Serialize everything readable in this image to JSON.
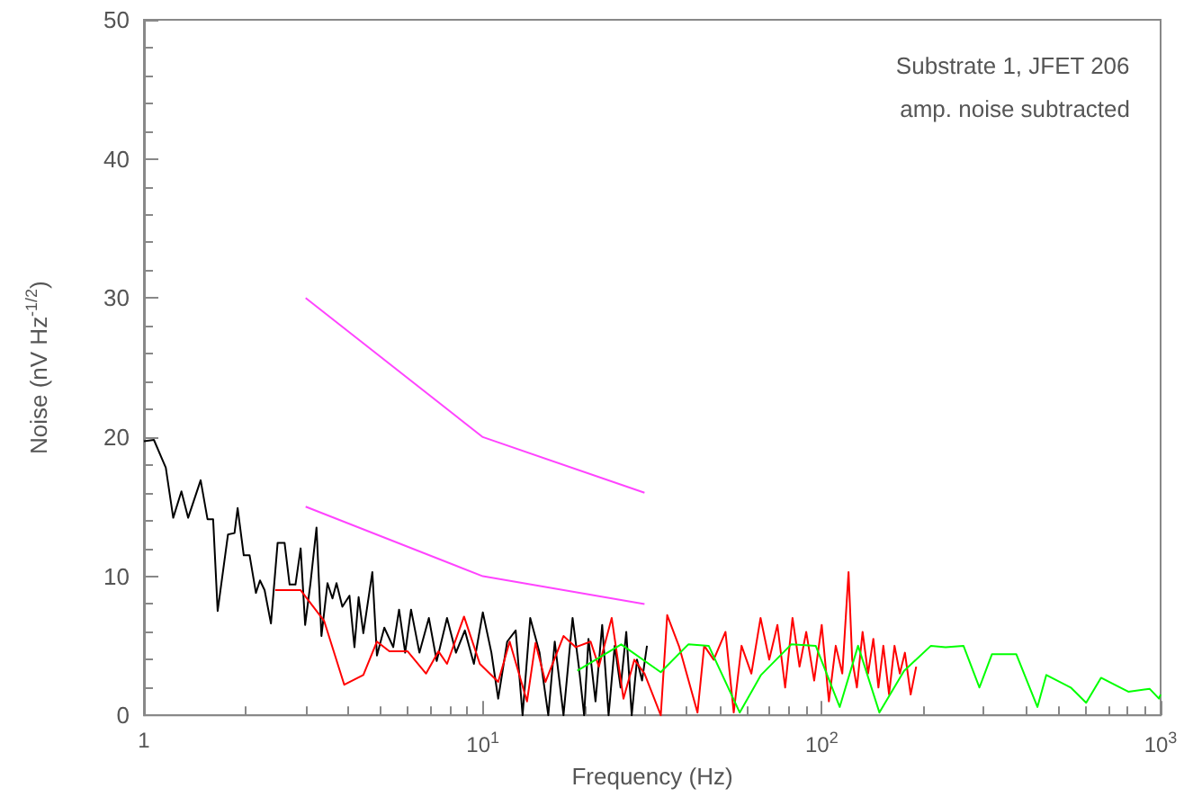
{
  "chart_data": {
    "type": "line",
    "xlabel": "Frequency (Hz)",
    "ylabel": "Noise (nV Hz$^{-1/2}$)",
    "log": "x",
    "xlim": [
      1,
      1000
    ],
    "ylim": [
      0,
      50
    ],
    "xticks": [
      {
        "value": 1,
        "label": "1"
      },
      {
        "value": 10,
        "label": "10$^{1}$"
      },
      {
        "value": 100,
        "label": "10$^{2}$"
      },
      {
        "value": 1000,
        "label": "10$^{3}$"
      }
    ],
    "yticks": [
      0,
      10,
      20,
      30,
      40,
      50
    ],
    "grid": false,
    "marker": "none",
    "annotations": [
      "Substrate 1, JFET 206",
      "amp. noise subtracted"
    ],
    "series": [
      {
        "color": "#000000",
        "x": [
          1,
          1.07,
          1.16,
          1.22,
          1.29,
          1.35,
          1.47,
          1.54,
          1.6,
          1.65,
          1.77,
          1.85,
          1.89,
          1.97,
          2.05,
          2.14,
          2.2,
          2.27,
          2.37,
          2.48,
          2.6,
          2.69,
          2.8,
          2.9,
          2.99,
          3.1,
          3.23,
          3.34,
          3.48,
          3.6,
          3.7,
          3.85,
          4.04,
          4.18,
          4.3,
          4.44,
          4.72,
          4.87,
          5.12,
          5.44,
          5.66,
          5.9,
          6.14,
          6.5,
          6.93,
          7.31,
          7.84,
          8.33,
          8.85,
          9.41,
          10,
          10.6,
          11.1,
          11.8,
          12.5,
          13.1,
          13.8,
          14.7,
          15.6,
          16.3,
          17.3,
          18.4,
          19.2,
          19.9,
          20.5,
          21.5,
          22.5,
          23.5,
          24.5,
          25.5,
          26.5,
          27.5,
          28.5,
          29.5,
          30.5
        ],
        "values": [
          19.7,
          19.8,
          17.8,
          14.2,
          16.1,
          14.2,
          16.9,
          14.1,
          14.1,
          7.5,
          13,
          13.1,
          14.9,
          11.5,
          11.5,
          8.8,
          9.7,
          9,
          6.6,
          12.4,
          12.4,
          9.4,
          9.4,
          12,
          6.5,
          9.5,
          13.5,
          5.7,
          9.5,
          8.4,
          9.5,
          7.8,
          8.6,
          4.9,
          8.5,
          5.9,
          10.3,
          4.3,
          6.3,
          4.9,
          7.6,
          4.5,
          7.6,
          4.5,
          7,
          3.9,
          7,
          4.5,
          6.1,
          3.7,
          7.4,
          4.5,
          1.2,
          5.3,
          6.1,
          0,
          7,
          4.5,
          0,
          5.3,
          0,
          7,
          3.5,
          0,
          5.5,
          1,
          6.5,
          0,
          5,
          2,
          6,
          0,
          4,
          2.5,
          5
        ]
      },
      {
        "color": "#ff0000",
        "x": [
          2.44,
          2.9,
          3.4,
          3.9,
          4.44,
          4.87,
          5.3,
          6,
          6.8,
          7.4,
          7.84,
          8.8,
          9.8,
          11.1,
          12,
          13.5,
          14.3,
          15.3,
          17.3,
          18.8,
          20.8,
          22,
          24,
          26,
          28,
          30,
          33.5,
          35,
          38,
          41,
          43,
          45,
          48,
          52,
          55,
          58,
          62,
          66,
          70,
          74,
          78,
          82,
          86,
          90,
          95,
          100,
          105,
          110,
          115,
          120,
          123,
          127,
          132,
          137,
          142,
          147,
          152,
          158,
          164,
          170,
          176,
          183,
          190
        ],
        "values": [
          9,
          9,
          6.8,
          2.2,
          2.9,
          5.3,
          4.6,
          4.6,
          3,
          4.6,
          3.7,
          7.1,
          3.7,
          2.4,
          5.3,
          1,
          5.2,
          2.4,
          5.7,
          4.9,
          5.3,
          3.5,
          7,
          1.2,
          4,
          3,
          0,
          7.2,
          4.9,
          2,
          0.2,
          5,
          4,
          6,
          0.2,
          5,
          3,
          7,
          4,
          6.5,
          2,
          7,
          3.5,
          6,
          2.5,
          6.5,
          1,
          5,
          3,
          10.3,
          4,
          2,
          6,
          3,
          5.5,
          2,
          5,
          1.5,
          5,
          3,
          4.5,
          1.5,
          3.5
        ]
      },
      {
        "color": "#00ff00",
        "x": [
          19,
          25.6,
          33.5,
          40.4,
          46.4,
          57.3,
          66.2,
          81.3,
          96,
          113,
          128,
          148,
          175,
          210,
          232,
          262,
          292,
          318,
          375,
          433,
          460,
          543,
          603,
          667,
          803,
          929,
          989,
          1000
        ],
        "values": [
          3.2,
          5.1,
          3.1,
          5.1,
          5,
          0.2,
          2.9,
          5.1,
          5,
          0.6,
          5,
          0.2,
          3.2,
          5,
          4.9,
          5,
          2,
          4.4,
          4.4,
          0.6,
          2.9,
          2,
          0.9,
          2.7,
          1.7,
          1.9,
          1.2,
          1.5
        ]
      },
      {
        "color": "#ff44ff",
        "x": [
          3,
          10,
          30
        ],
        "values": [
          30,
          20,
          16
        ]
      },
      {
        "color": "#ff44ff",
        "x": [
          3,
          10,
          30
        ],
        "values": [
          15,
          10,
          8
        ]
      }
    ]
  }
}
